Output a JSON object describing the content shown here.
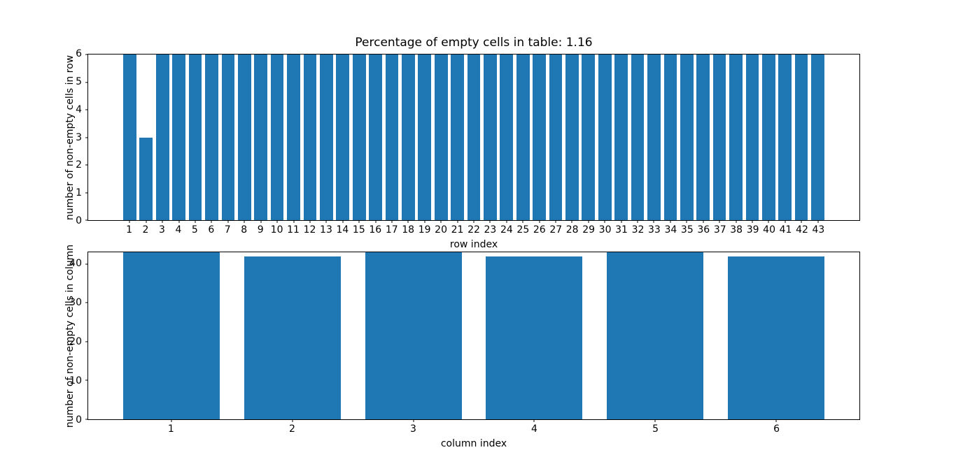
{
  "figure": {
    "background_color": "#ffffff",
    "bar_color": "#1f77b4",
    "axis_color": "#000000",
    "text_color": "#000000"
  },
  "chart_data": [
    {
      "type": "bar",
      "title": "Percentage of empty cells in table: 1.16",
      "xlabel": "row index",
      "ylabel": "number of non-empty cells in row",
      "categories": [
        "1",
        "2",
        "3",
        "4",
        "5",
        "6",
        "7",
        "8",
        "9",
        "10",
        "11",
        "12",
        "13",
        "14",
        "15",
        "16",
        "17",
        "18",
        "19",
        "20",
        "21",
        "22",
        "23",
        "24",
        "25",
        "26",
        "27",
        "28",
        "29",
        "30",
        "31",
        "32",
        "33",
        "34",
        "35",
        "36",
        "37",
        "38",
        "39",
        "40",
        "41",
        "42",
        "43"
      ],
      "values": [
        6,
        3,
        6,
        6,
        6,
        6,
        6,
        6,
        6,
        6,
        6,
        6,
        6,
        6,
        6,
        6,
        6,
        6,
        6,
        6,
        6,
        6,
        6,
        6,
        6,
        6,
        6,
        6,
        6,
        6,
        6,
        6,
        6,
        6,
        6,
        6,
        6,
        6,
        6,
        6,
        6,
        6,
        6
      ],
      "ylim": [
        0,
        6
      ],
      "yticks": [
        0,
        1,
        2,
        3,
        4,
        5,
        6
      ],
      "bar_width": 0.8,
      "x_margin": 0.05,
      "grid": false,
      "legend": null
    },
    {
      "type": "bar",
      "title": "",
      "xlabel": "column index",
      "ylabel": "number of non-empty cells in column",
      "categories": [
        "1",
        "2",
        "3",
        "4",
        "5",
        "6"
      ],
      "values": [
        43,
        42,
        43,
        42,
        43,
        42
      ],
      "ylim": [
        0,
        43
      ],
      "yticks": [
        0,
        10,
        20,
        30,
        40
      ],
      "bar_width": 0.8,
      "x_margin": 0.05,
      "grid": false,
      "legend": null
    }
  ]
}
